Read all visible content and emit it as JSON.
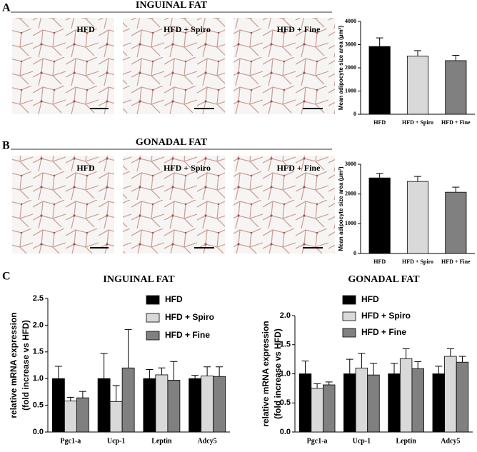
{
  "panels": {
    "labels": [
      "A",
      "B",
      "C"
    ],
    "titles": [
      "INGUINAL FAT",
      "GONADAL FAT"
    ]
  },
  "chart_data": [
    {
      "type": "bar",
      "categories": [
        "HFD",
        "HFD + Spiro",
        "HFD + Fine"
      ],
      "values": [
        2920,
        2510,
        2310
      ],
      "errors": [
        370,
        230,
        230
      ],
      "colors": [
        "#000000",
        "#d9d9d9",
        "#808080"
      ],
      "ylabel": [
        "Mean adipocyte size area (μm²)"
      ],
      "ylim": [
        0,
        4000
      ],
      "yticks": [
        0,
        1000,
        2000,
        3000,
        4000
      ]
    },
    {
      "type": "bar",
      "categories": [
        "HFD",
        "HFD + Spiro",
        "HFD + Fine"
      ],
      "values": [
        2540,
        2420,
        2060
      ],
      "errors": [
        150,
        170,
        170
      ],
      "colors": [
        "#000000",
        "#d9d9d9",
        "#808080"
      ],
      "ylabel": [
        "Mean adipocyte size area (μm²)"
      ],
      "ylim": [
        0,
        3000
      ],
      "yticks": [
        0,
        1000,
        2000,
        3000
      ]
    },
    {
      "type": "grouped_bar",
      "title": "INGUINAL FAT",
      "categories": [
        "Pgc1-a",
        "Ucp-1",
        "Leptin",
        "Adcy5"
      ],
      "ylabel": [
        "relative mRNA expression",
        "(fold increase vs HFD)"
      ],
      "ylim": [
        0,
        2.5
      ],
      "yticks": [
        {
          "value": 0,
          "label": "0.0"
        },
        0.5,
        {
          "value": 1,
          "label": "1.0"
        },
        1.5,
        {
          "value": 2,
          "label": "2.0"
        },
        2.5
      ],
      "series": [
        {
          "name": "HFD",
          "color": "#000000",
          "values": [
            1.0,
            1.0,
            1.0,
            1.0
          ],
          "errors": [
            0.23,
            0.47,
            0.17,
            0.06
          ]
        },
        {
          "name": "HFD + Spiro",
          "color": "#d9d9d9",
          "values": [
            0.58,
            0.57,
            1.07,
            1.05
          ],
          "errors": [
            0.07,
            0.3,
            0.13,
            0.17
          ]
        },
        {
          "name": "HFD + Fine",
          "color": "#808080",
          "values": [
            0.64,
            1.2,
            0.97,
            1.04
          ],
          "errors": [
            0.12,
            0.72,
            0.35,
            0.18
          ]
        }
      ]
    },
    {
      "type": "grouped_bar",
      "title": "GONADAL FAT",
      "categories": [
        "Pgc1-a",
        "Ucp-1",
        "Leptin",
        "Adcy5"
      ],
      "ylabel": [
        "relative mRNA expression",
        "(fold increase vs HFD)"
      ],
      "ylim": [
        0,
        2.0
      ],
      "yticks": [
        {
          "value": 0,
          "label": "0.0"
        },
        0.5,
        {
          "value": 1,
          "label": "1.0"
        },
        1.5,
        {
          "value": 2,
          "label": "2.0"
        }
      ],
      "series": [
        {
          "name": "HFD",
          "color": "#000000",
          "values": [
            1.0,
            1.0,
            1.0,
            1.0
          ],
          "errors": [
            0.22,
            0.25,
            0.18,
            0.13
          ]
        },
        {
          "name": "HFD + Spiro",
          "color": "#d9d9d9",
          "values": [
            0.75,
            1.1,
            1.26,
            1.3
          ],
          "errors": [
            0.08,
            0.25,
            0.17,
            0.13
          ]
        },
        {
          "name": "HFD + Fine",
          "color": "#808080",
          "values": [
            0.81,
            0.98,
            1.09,
            1.2
          ],
          "errors": [
            0.05,
            0.2,
            0.12,
            0.1
          ]
        }
      ]
    }
  ]
}
